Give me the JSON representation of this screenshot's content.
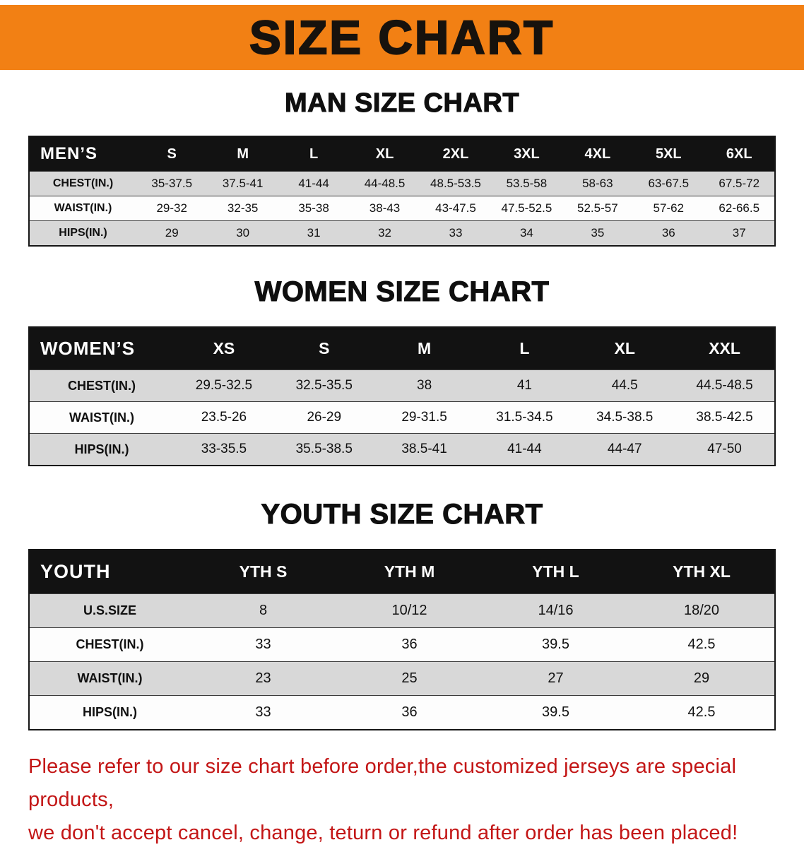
{
  "banner": {
    "title": "SIZE CHART"
  },
  "sections": [
    {
      "heading": "MAN SIZE CHART",
      "table": {
        "name": "mens-size-table",
        "header": [
          "MEN’S",
          "S",
          "M",
          "L",
          "XL",
          "2XL",
          "3XL",
          "4XL",
          "5XL",
          "6XL"
        ],
        "rows": [
          {
            "label": "CHEST(IN.)",
            "values": [
              "35-37.5",
              "37.5-41",
              "41-44",
              "44-48.5",
              "48.5-53.5",
              "53.5-58",
              "58-63",
              "63-67.5",
              "67.5-72"
            ]
          },
          {
            "label": "WAIST(IN.)",
            "values": [
              "29-32",
              "32-35",
              "35-38",
              "38-43",
              "43-47.5",
              "47.5-52.5",
              "52.5-57",
              "57-62",
              "62-66.5"
            ]
          },
          {
            "label": "HIPS(IN.)",
            "values": [
              "29",
              "30",
              "31",
              "32",
              "33",
              "34",
              "35",
              "36",
              "37"
            ]
          }
        ]
      }
    },
    {
      "heading": "WOMEN SIZE CHART",
      "table": {
        "name": "womens-size-table",
        "header": [
          "WOMEN’S",
          "XS",
          "S",
          "M",
          "L",
          "XL",
          "XXL"
        ],
        "rows": [
          {
            "label": "CHEST(IN.)",
            "values": [
              "29.5-32.5",
              "32.5-35.5",
              "38",
              "41",
              "44.5",
              "44.5-48.5"
            ]
          },
          {
            "label": "WAIST(IN.)",
            "values": [
              "23.5-26",
              "26-29",
              "29-31.5",
              "31.5-34.5",
              "34.5-38.5",
              "38.5-42.5"
            ]
          },
          {
            "label": "HIPS(IN.)",
            "values": [
              "33-35.5",
              "35.5-38.5",
              "38.5-41",
              "41-44",
              "44-47",
              "47-50"
            ]
          }
        ]
      }
    },
    {
      "heading": "YOUTH SIZE CHART",
      "table": {
        "name": "youth-size-table",
        "header": [
          "YOUTH",
          "YTH S",
          "YTH M",
          "YTH L",
          "YTH XL"
        ],
        "rows": [
          {
            "label": "U.S.SIZE",
            "values": [
              "8",
              "10/12",
              "14/16",
              "18/20"
            ]
          },
          {
            "label": "CHEST(IN.)",
            "values": [
              "33",
              "36",
              "39.5",
              "42.5"
            ]
          },
          {
            "label": "WAIST(IN.)",
            "values": [
              "23",
              "25",
              "27",
              "29"
            ]
          },
          {
            "label": "HIPS(IN.)",
            "values": [
              "33",
              "36",
              "39.5",
              "42.5"
            ]
          }
        ]
      }
    }
  ],
  "disclaimer": {
    "line1": "Please refer to our size chart before order,the customized jerseys are special products,",
    "line2": "we don't accept cancel, change, teturn or refund after order has been placed!"
  },
  "colors": {
    "banner_bg": "#F28014",
    "table_header_bg": "#121212",
    "row_shade": "#D8D8D8",
    "disclaimer_text": "#C31616"
  }
}
